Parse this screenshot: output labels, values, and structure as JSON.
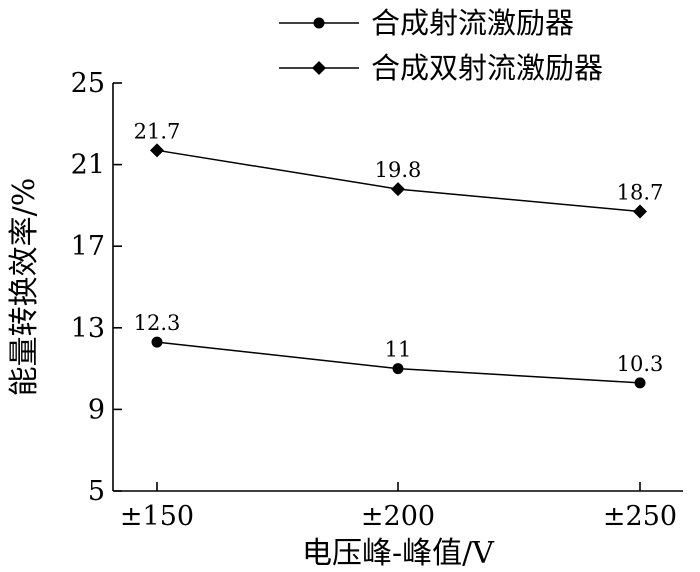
{
  "chart_data": {
    "type": "line",
    "categories": [
      "±150",
      "±200",
      "±250"
    ],
    "series": [
      {
        "name": "合成射流激励器",
        "marker": "circle",
        "values": [
          12.3,
          11,
          10.3
        ],
        "labels": [
          "12.3",
          "11",
          "10.3"
        ]
      },
      {
        "name": "合成双射流激励器",
        "marker": "diamond",
        "values": [
          21.7,
          19.8,
          18.7
        ],
        "labels": [
          "21.7",
          "19.8",
          "18.7"
        ]
      }
    ],
    "xlabel": "电压峰-峰值/V",
    "ylabel": "能量转换效率/%",
    "ylim": [
      5,
      25
    ],
    "yticks": [
      5,
      9,
      13,
      17,
      21,
      25
    ],
    "grid": false,
    "legend_position": "top-right",
    "colors": {
      "line": "#000000",
      "background": "#ffffff"
    }
  }
}
